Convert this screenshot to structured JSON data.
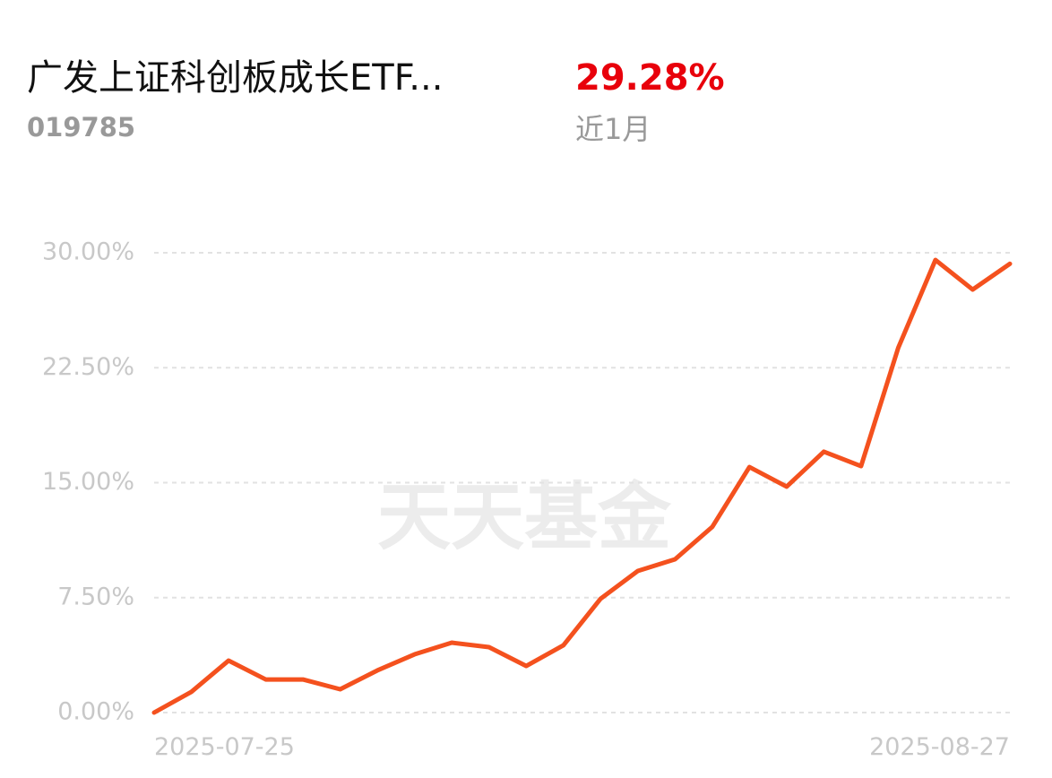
{
  "header": {
    "fund_name": "广发上证科创板成长ETF...",
    "fund_code": "019785",
    "return_value": "29.28%",
    "period": "近1月"
  },
  "watermark": "天天基金",
  "chart_data": {
    "type": "line",
    "categories": [
      "2025-07-25",
      null,
      null,
      null,
      null,
      null,
      null,
      null,
      null,
      null,
      null,
      null,
      null,
      null,
      null,
      null,
      null,
      null,
      null,
      null,
      null,
      null,
      null,
      "2025-08-27"
    ],
    "series": [
      {
        "name": "近1月",
        "color": "#f4511e",
        "values": [
          0,
          1.35,
          3.39,
          2.16,
          2.16,
          1.52,
          2.75,
          3.8,
          4.56,
          4.27,
          3.04,
          4.39,
          7.43,
          9.24,
          10.0,
          12.11,
          16.02,
          14.74,
          17.02,
          16.08,
          23.8,
          29.53,
          27.6,
          29.28
        ]
      }
    ],
    "ylim": [
      0,
      30
    ],
    "yticks": [
      {
        "value": 0,
        "label": "0.00%"
      },
      {
        "value": 7.5,
        "label": "7.50%"
      },
      {
        "value": 15,
        "label": "15.00%"
      },
      {
        "value": 22.5,
        "label": "22.50%"
      },
      {
        "value": 30,
        "label": "30.00%"
      }
    ],
    "grid": true
  }
}
